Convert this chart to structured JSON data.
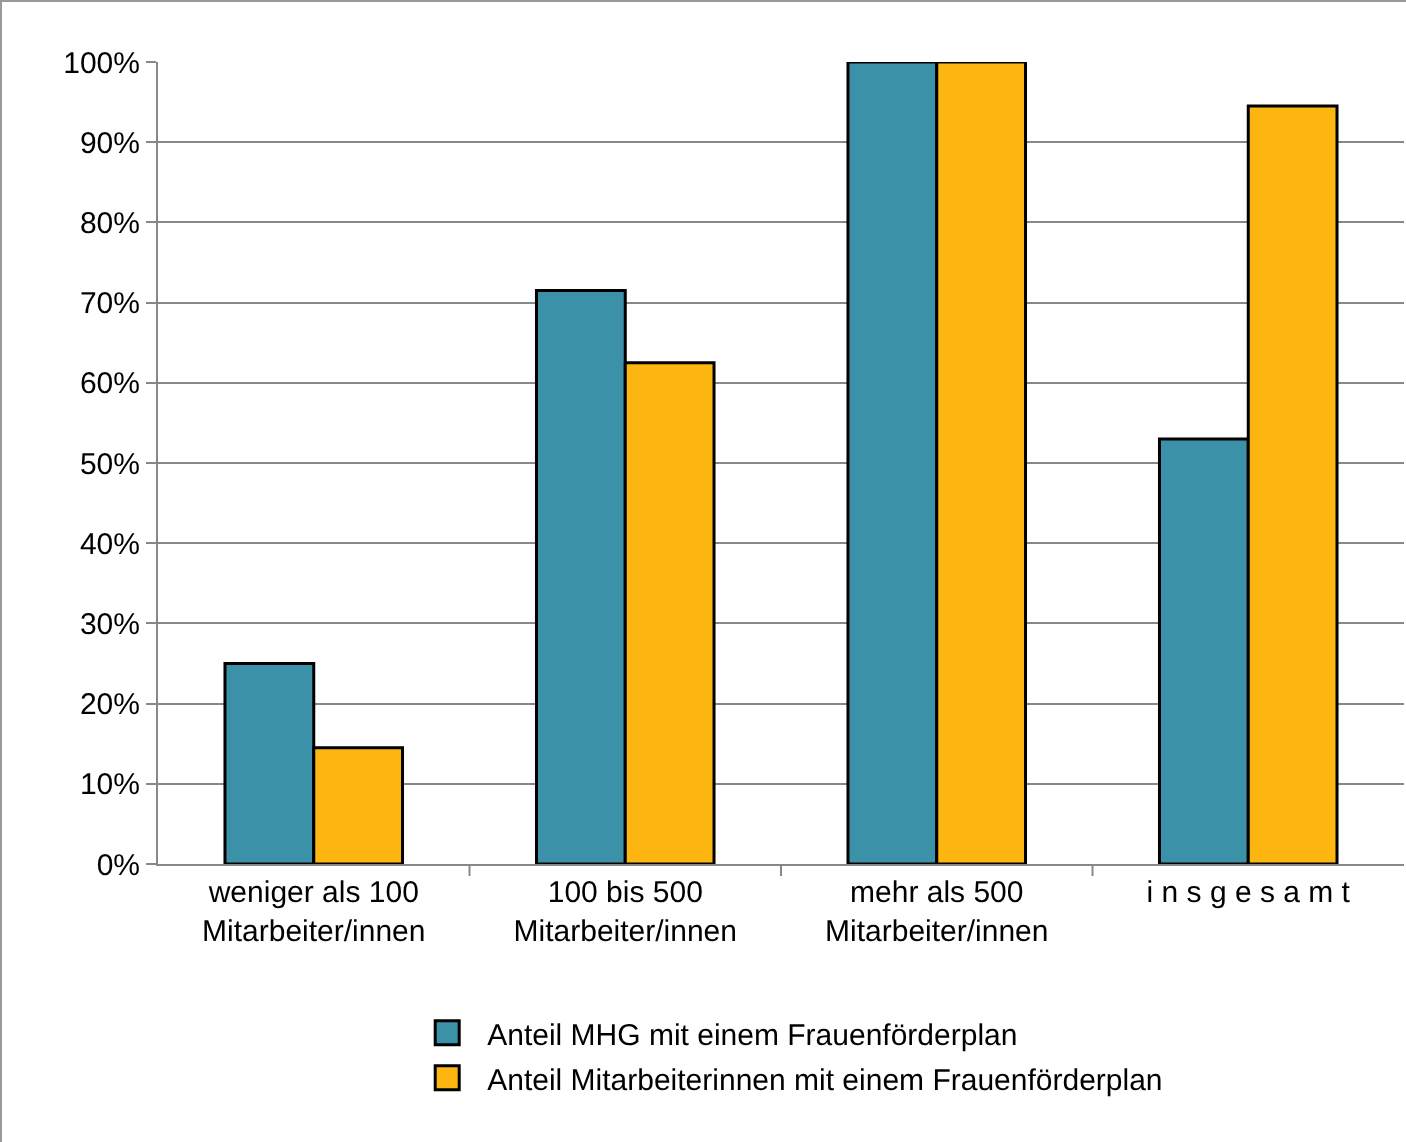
{
  "chart_data": {
    "type": "bar",
    "categories": [
      "weniger als 100\nMitarbeiter/innen",
      "100 bis 500\nMitarbeiter/innen",
      "mehr als 500\nMitarbeiter/innen",
      "i n s g e s a m t"
    ],
    "series": [
      {
        "name": "Anteil MHG mit einem Frauenförderplan",
        "color": "#3a91a8",
        "values": [
          25,
          71.5,
          100,
          53
        ]
      },
      {
        "name": "Anteil Mitarbeiterinnen mit einem Frauenförderplan",
        "color": "#fdb60f",
        "values": [
          14.5,
          62.5,
          100,
          94.5
        ]
      }
    ],
    "ylim": [
      0,
      100
    ],
    "yticks": [
      {
        "value": 0,
        "label": "0%"
      },
      {
        "value": 10,
        "label": "10%"
      },
      {
        "value": 20,
        "label": "20%"
      },
      {
        "value": 30,
        "label": "30%"
      },
      {
        "value": 40,
        "label": "40%"
      },
      {
        "value": 50,
        "label": "50%"
      },
      {
        "value": 60,
        "label": "60%"
      },
      {
        "value": 70,
        "label": "70%"
      },
      {
        "value": 80,
        "label": "80%"
      },
      {
        "value": 90,
        "label": "90%"
      },
      {
        "value": 100,
        "label": "100%"
      }
    ],
    "grid": "y",
    "legend": "bottom"
  }
}
